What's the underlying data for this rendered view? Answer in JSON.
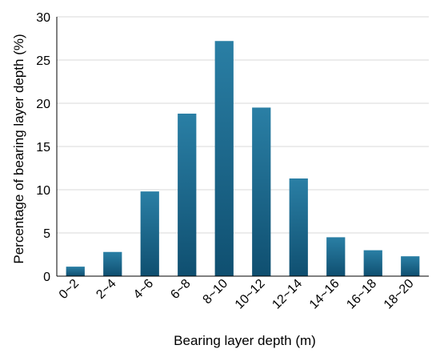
{
  "chart_data": {
    "type": "bar",
    "title": "",
    "xlabel": "Bearing layer depth  (m)",
    "ylabel": "Percentage of bearing layer depth (%)",
    "categories": [
      "0~2",
      "2~4",
      "4~6",
      "6~8",
      "8~10",
      "10~12",
      "12~14",
      "14~16",
      "16~18",
      "18~20"
    ],
    "values": [
      1.1,
      2.8,
      9.8,
      18.8,
      27.2,
      19.5,
      11.3,
      4.5,
      3.0,
      2.3
    ],
    "ylim": [
      0,
      30
    ],
    "yticks": [
      0,
      5,
      10,
      15,
      20,
      25,
      30
    ],
    "grid": true,
    "legend": "none",
    "colors": {
      "bar_top": "#2a7fa5",
      "bar_bottom": "#0f4f70",
      "grid": "#d9d9d9",
      "axis": "#000000"
    }
  }
}
